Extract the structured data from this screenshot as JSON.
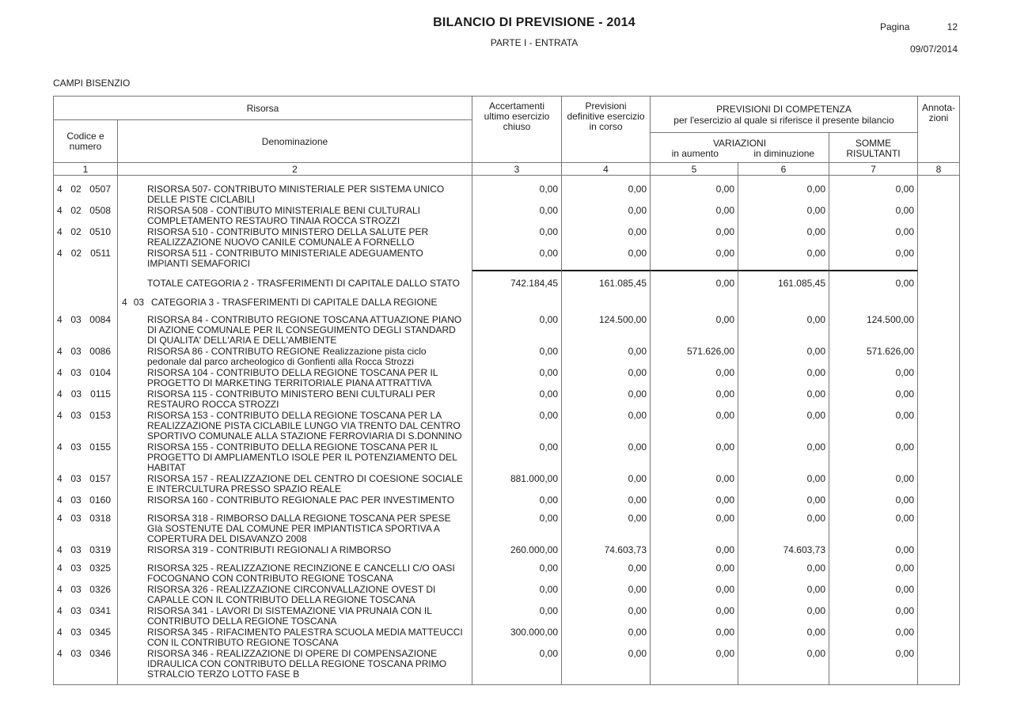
{
  "page_header": {
    "title": "BILANCIO DI PREVISIONE - 2014",
    "subtitle": "PARTE I - ENTRATA",
    "page_label": "Pagina",
    "page_number": "12",
    "date": "09/07/2014",
    "entity": "CAMPI BISENZIO"
  },
  "table": {
    "header": {
      "risorsa": "Risorsa",
      "codice_lines": [
        "Codice e",
        "numero"
      ],
      "denominazione": "Denominazione",
      "accertamenti_lines": [
        "Accertamenti",
        "ultimo esercizio",
        "chiuso"
      ],
      "previsioni_lines": [
        "Previsioni",
        "definitive esercizio",
        "in corso"
      ],
      "competenza_title": "PREVISIONI DI COMPETENZA",
      "competenza_subtitle": "per l'esercizio al quale si riferisce il presente bilancio",
      "variazioni": "VARIAZIONI",
      "in_aumento": "in aumento",
      "in_diminuzione": "in diminuzione",
      "somme_lines": [
        "SOMME",
        "RISULTANTI"
      ],
      "annotazioni_lines": [
        "Annota-",
        "zioni"
      ],
      "column_numbers": [
        "1",
        "2",
        "3",
        "4",
        "5",
        "6",
        "7",
        "8"
      ]
    },
    "rows": [
      {
        "type": "risorsa",
        "code": [
          "4",
          "02",
          "0507"
        ],
        "desc_lines": [
          "RISORSA 507- CONTRIBUTO MINISTERIALE PER SISTEMA UNICO",
          "DELLE PISTE CICLABILI"
        ],
        "values": [
          "0,00",
          "0,00",
          "0,00",
          "0,00",
          "0,00"
        ]
      },
      {
        "type": "risorsa",
        "code": [
          "4",
          "02",
          "0508"
        ],
        "desc_lines": [
          "RISORSA 508 - CONTIBUTO MINISTERIALE BENI CULTURALI",
          "COMPLETAMENTO RESTAURO TINAIA ROCCA STROZZI"
        ],
        "values": [
          "0,00",
          "0,00",
          "0,00",
          "0,00",
          "0,00"
        ]
      },
      {
        "type": "risorsa",
        "code": [
          "4",
          "02",
          "0510"
        ],
        "desc_lines": [
          "RISORSA 510 - CONTRIBUTO MINISTERO DELLA SALUTE PER",
          "REALIZZAZIONE NUOVO CANILE COMUNALE A FORNELLO"
        ],
        "values": [
          "0,00",
          "0,00",
          "0,00",
          "0,00",
          "0,00"
        ]
      },
      {
        "type": "risorsa",
        "code": [
          "4",
          "02",
          "0511"
        ],
        "desc_lines": [
          "RISORSA 511 - CONTRIBUTO MINISTERIALE ADEGUAMENTO",
          "IMPIANTI SEMAFORICI"
        ],
        "values": [
          "0,00",
          "0,00",
          "0,00",
          "0,00",
          "0,00"
        ]
      },
      {
        "type": "totale",
        "desc_lines": [
          "TOTALE CATEGORIA 2 - TRASFERIMENTI DI CAPITALE DALLO STATO"
        ],
        "values": [
          "742.184,45",
          "161.085,45",
          "0,00",
          "161.085,45",
          "0,00"
        ]
      },
      {
        "type": "categoria",
        "code_prefix": [
          "4",
          "03"
        ],
        "desc": "CATEGORIA 3 - TRASFERIMENTI DI CAPITALE DALLA REGIONE"
      },
      {
        "type": "risorsa",
        "code": [
          "4",
          "03",
          "0084"
        ],
        "desc_lines": [
          "RISORSA 84 - CONTRIBUTO REGIONE TOSCANA ATTUAZIONE PIANO",
          "DI AZIONE COMUNALE PER IL CONSEGUIMENTO DEGLI STANDARD",
          "DI QUALITA' DELL'ARIA E DELL'AMBIENTE"
        ],
        "values": [
          "0,00",
          "124.500,00",
          "0,00",
          "0,00",
          "124.500,00"
        ]
      },
      {
        "type": "risorsa",
        "code": [
          "4",
          "03",
          "0086"
        ],
        "desc_lines": [
          "RISORSA 86 - CONTRIBUTO REGIONE Realizzazione pista ciclo",
          "pedonale dal parco archeologico di Gonfienti alla Rocca Strozzi"
        ],
        "values": [
          "0,00",
          "0,00",
          "571.626,00",
          "0,00",
          "571.626,00"
        ]
      },
      {
        "type": "risorsa",
        "code": [
          "4",
          "03",
          "0104"
        ],
        "desc_lines": [
          "RISORSA 104 - CONTRIBUTO DELLA REGIONE TOSCANA PER IL",
          "PROGETTO DI MARKETING TERRITORIALE PIANA ATTRATTIVA"
        ],
        "values": [
          "0,00",
          "0,00",
          "0,00",
          "0,00",
          "0,00"
        ]
      },
      {
        "type": "risorsa",
        "code": [
          "4",
          "03",
          "0115"
        ],
        "desc_lines": [
          "RISORSA 115 - CONTRIBUTO MINISTERO BENI CULTURALI PER",
          "RESTAURO ROCCA STROZZI"
        ],
        "values": [
          "0,00",
          "0,00",
          "0,00",
          "0,00",
          "0,00"
        ]
      },
      {
        "type": "risorsa",
        "code": [
          "4",
          "03",
          "0153"
        ],
        "desc_lines": [
          "RISORSA 153 - CONTRIBUTO DELLA REGIONE TOSCANA PER LA",
          "REALIZZAZIONE PISTA CICLABILE LUNGO VIA TRENTO DAL CENTRO",
          "SPORTIVO COMUNALE ALLA STAZIONE FERROVIARIA DI S.DONNINO"
        ],
        "values": [
          "0,00",
          "0,00",
          "0,00",
          "0,00",
          "0,00"
        ]
      },
      {
        "type": "risorsa",
        "code": [
          "4",
          "03",
          "0155"
        ],
        "desc_lines": [
          "RISORSA 155 - CONTRIBUTO DELLA REGIONE TOSCANA PER IL",
          "PROGETTO DI AMPLIAMENTLO ISOLE PER IL POTENZIAMENTO DEL",
          "HABITAT"
        ],
        "values": [
          "0,00",
          "0,00",
          "0,00",
          "0,00",
          "0,00"
        ]
      },
      {
        "type": "risorsa",
        "code": [
          "4",
          "03",
          "0157"
        ],
        "desc_lines": [
          "RISORSA 157 - REALIZZAZIONE DEL CENTRO DI COESIONE SOCIALE",
          "E INTERCULTURA PRESSO SPAZIO REALE"
        ],
        "values": [
          "881.000,00",
          "0,00",
          "0,00",
          "0,00",
          "0,00"
        ]
      },
      {
        "type": "risorsa",
        "code": [
          "4",
          "03",
          "0160"
        ],
        "desc_lines": [
          "RISORSA 160 - CONTRIBUTO REGIONALE PAC PER INVESTIMENTO"
        ],
        "values": [
          "0,00",
          "0,00",
          "0,00",
          "0,00",
          "0,00"
        ]
      },
      {
        "type": "risorsa",
        "code": [
          "4",
          "03",
          "0318"
        ],
        "desc_lines": [
          "RISORSA 318 - RIMBORSO DALLA REGIONE TOSCANA PER SPESE",
          "GIà SOSTENUTE DAL COMUNE PER IMPIANTISTICA SPORTIVA A",
          "COPERTURA DEL DISAVANZO 2008"
        ],
        "values": [
          "0,00",
          "0,00",
          "0,00",
          "0,00",
          "0,00"
        ]
      },
      {
        "type": "risorsa",
        "code": [
          "4",
          "03",
          "0319"
        ],
        "desc_lines": [
          "RISORSA 319 - CONTRIBUTI REGIONALI A RIMBORSO"
        ],
        "values": [
          "260.000,00",
          "74.603,73",
          "0,00",
          "74.603,73",
          "0,00"
        ]
      },
      {
        "type": "risorsa",
        "code": [
          "4",
          "03",
          "0325"
        ],
        "desc_lines": [
          "RISORSA 325 - REALIZZAZIONE RECINZIONE E CANCELLI C/O OASI",
          "FOCOGNANO CON CONTRIBUTO REGIONE TOSCANA"
        ],
        "values": [
          "0,00",
          "0,00",
          "0,00",
          "0,00",
          "0,00"
        ]
      },
      {
        "type": "risorsa",
        "code": [
          "4",
          "03",
          "0326"
        ],
        "desc_lines": [
          "RISORSA 326 - REALIZZAZIONE CIRCONVALLAZIONE OVEST DI",
          "CAPALLE CON IL CONTRIBUTO DELLA REGIONE TOSCANA"
        ],
        "values": [
          "0,00",
          "0,00",
          "0,00",
          "0,00",
          "0,00"
        ]
      },
      {
        "type": "risorsa",
        "code": [
          "4",
          "03",
          "0341"
        ],
        "desc_lines": [
          "RISORSA 341 - LAVORI DI SISTEMAZIONE VIA PRUNAIA CON IL",
          "CONTRIBUTO DELLA REGIONE TOSCANA"
        ],
        "values": [
          "0,00",
          "0,00",
          "0,00",
          "0,00",
          "0,00"
        ]
      },
      {
        "type": "risorsa",
        "code": [
          "4",
          "03",
          "0345"
        ],
        "desc_lines": [
          "RISORSA 345 - RIFACIMENTO PALESTRA SCUOLA MEDIA MATTEUCCI",
          "CON IL CONTRIBUTO REGIONE TOSCANA"
        ],
        "values": [
          "300.000,00",
          "0,00",
          "0,00",
          "0,00",
          "0,00"
        ]
      },
      {
        "type": "risorsa",
        "code": [
          "4",
          "03",
          "0346"
        ],
        "desc_lines": [
          "RISORSA 346 - REALIZZAZIONE DI OPERE DI COMPENSAZIONE",
          "IDRAULICA CON CONTRIBUTO DELLA REGIONE TOSCANA PRIMO",
          "STRALCIO TERZO LOTTO FASE B"
        ],
        "values": [
          "0,00",
          "0,00",
          "0,00",
          "0,00",
          "0,00"
        ]
      }
    ]
  }
}
